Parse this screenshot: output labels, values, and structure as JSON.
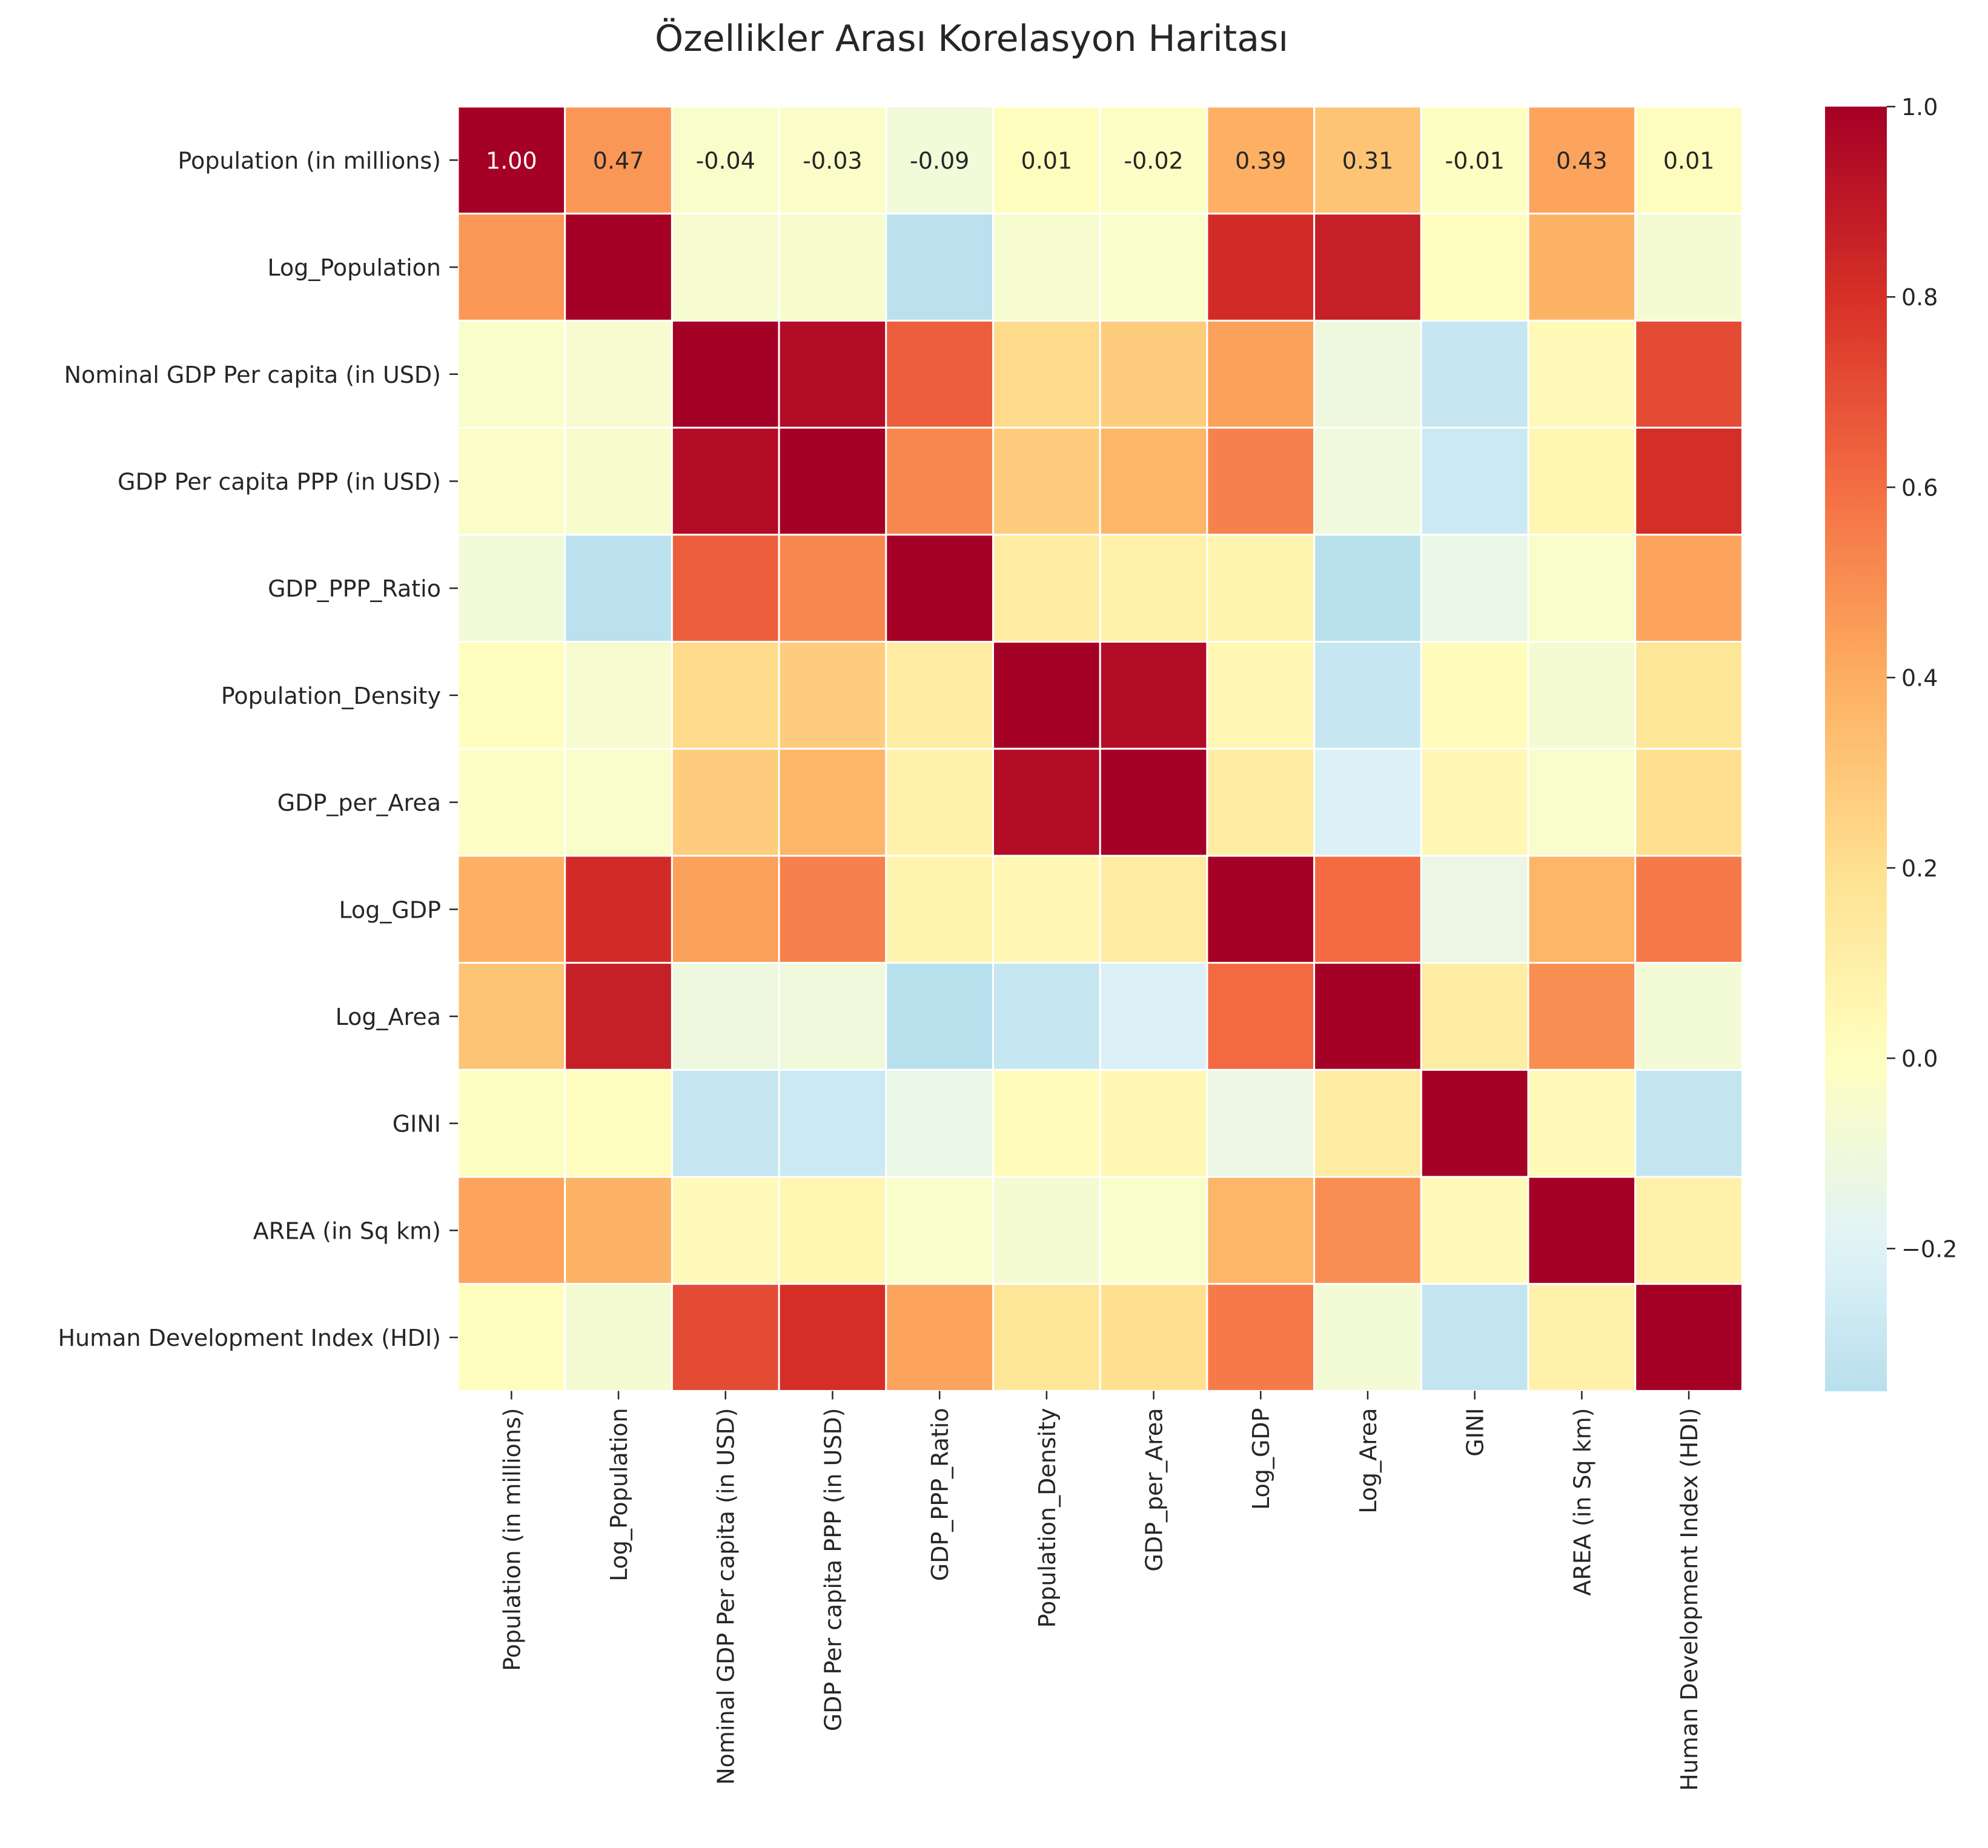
{
  "chart_data": {
    "type": "heatmap",
    "title": "Özellikler Arası Korelasyon Haritası",
    "labels": [
      "Population (in millions)",
      "Log_Population",
      "Nominal GDP Per capita (in USD)",
      "GDP Per capita PPP (in USD)",
      "GDP_PPP_Ratio",
      "Population_Density",
      "GDP_per_Area",
      "Log_GDP",
      "Log_Area",
      "GINI",
      "AREA (in Sq km)",
      "Human Development Index (HDI)"
    ],
    "values": [
      [
        1.0,
        0.47,
        -0.04,
        -0.03,
        -0.09,
        0.01,
        -0.02,
        0.39,
        0.31,
        -0.01,
        0.43,
        0.01
      ],
      [
        0.47,
        1.0,
        -0.06,
        -0.05,
        -0.34,
        -0.06,
        -0.04,
        0.82,
        0.87,
        0.01,
        0.38,
        -0.07
      ],
      [
        -0.04,
        -0.06,
        1.0,
        0.95,
        0.65,
        0.22,
        0.28,
        0.44,
        -0.11,
        -0.3,
        0.03,
        0.71
      ],
      [
        -0.03,
        -0.05,
        0.95,
        1.0,
        0.52,
        0.28,
        0.37,
        0.54,
        -0.1,
        -0.28,
        0.06,
        0.81
      ],
      [
        -0.09,
        -0.34,
        0.65,
        0.52,
        1.0,
        0.12,
        0.09,
        0.07,
        -0.35,
        -0.14,
        -0.04,
        0.43
      ],
      [
        0.01,
        -0.06,
        0.22,
        0.28,
        0.12,
        1.0,
        0.95,
        0.05,
        -0.3,
        0.02,
        -0.07,
        0.16
      ],
      [
        -0.02,
        -0.04,
        0.28,
        0.37,
        0.09,
        0.95,
        1.0,
        0.12,
        -0.22,
        0.05,
        -0.04,
        0.2
      ],
      [
        0.39,
        0.82,
        0.44,
        0.54,
        0.07,
        0.05,
        0.12,
        1.0,
        0.61,
        -0.13,
        0.37,
        0.56
      ],
      [
        0.31,
        0.87,
        -0.11,
        -0.1,
        -0.35,
        -0.3,
        -0.22,
        0.61,
        1.0,
        0.12,
        0.5,
        -0.08
      ],
      [
        -0.01,
        0.01,
        -0.3,
        -0.28,
        -0.14,
        0.02,
        0.05,
        -0.13,
        0.12,
        1.0,
        0.03,
        -0.31
      ],
      [
        0.43,
        0.38,
        0.03,
        0.06,
        -0.04,
        -0.07,
        -0.04,
        0.37,
        0.5,
        0.03,
        1.0,
        0.09
      ],
      [
        0.01,
        -0.07,
        0.71,
        0.81,
        0.43,
        0.16,
        0.2,
        0.56,
        -0.08,
        -0.31,
        0.09,
        1.0
      ]
    ],
    "annotations_row": 0,
    "annotation_labels": [
      "1.00",
      "0.47",
      "-0.04",
      "-0.03",
      "-0.09",
      "0.01",
      "-0.02",
      "0.39",
      "0.31",
      "-0.01",
      "0.43",
      "0.01"
    ],
    "vmin": -0.35,
    "vmax": 1.0,
    "colormap": "RdYlBu_r",
    "colorbar_ticks": [
      {
        "value": 1.0,
        "label": "1.0"
      },
      {
        "value": 0.8,
        "label": "0.8"
      },
      {
        "value": 0.6,
        "label": "0.6"
      },
      {
        "value": 0.4,
        "label": "0.4"
      },
      {
        "value": 0.2,
        "label": "0.2"
      },
      {
        "value": 0.0,
        "label": "0.0"
      },
      {
        "value": -0.2,
        "label": "−0.2"
      }
    ],
    "grid": false,
    "legend": "colorbar-right"
  }
}
